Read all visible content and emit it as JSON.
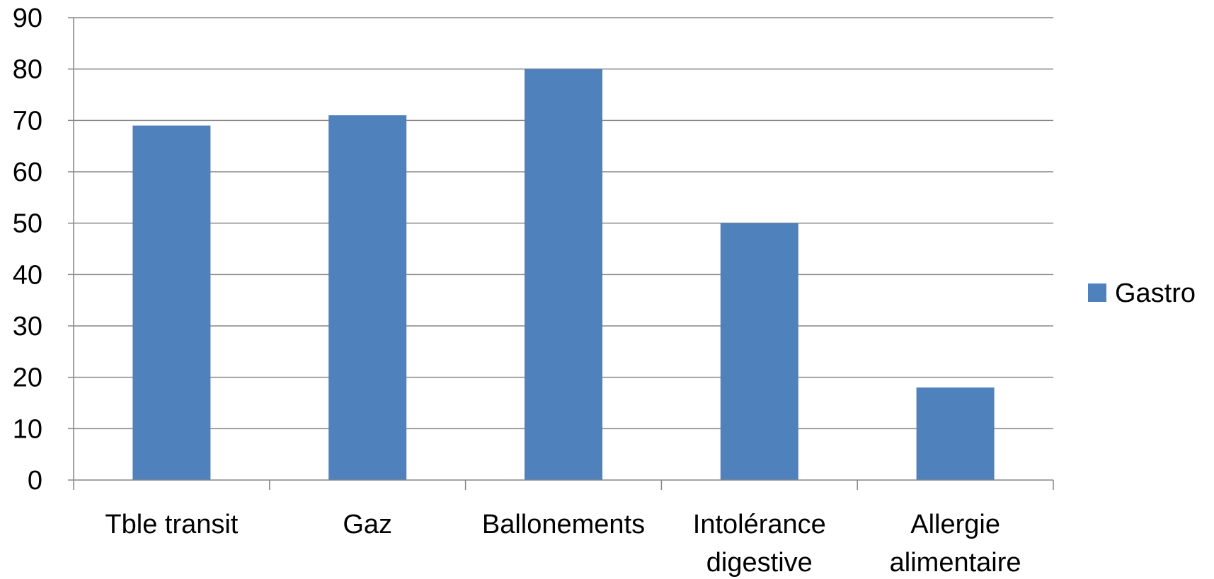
{
  "chart_data": {
    "type": "bar",
    "categories": [
      [
        "Tble transit"
      ],
      [
        "Gaz"
      ],
      [
        "Ballonements"
      ],
      [
        "Intolérance",
        "digestive"
      ],
      [
        "Allergie",
        "alimentaire"
      ]
    ],
    "series": [
      {
        "name": "Gastro",
        "values": [
          69,
          71,
          80,
          50,
          18
        ],
        "color": "#4f81bd"
      }
    ],
    "ylim": [
      0,
      90
    ],
    "yticks": [
      0,
      10,
      20,
      30,
      40,
      50,
      60,
      70,
      80,
      90
    ],
    "grid": true,
    "legend_position": "right",
    "gridline_color": "#868686",
    "axis_color": "#868686"
  }
}
